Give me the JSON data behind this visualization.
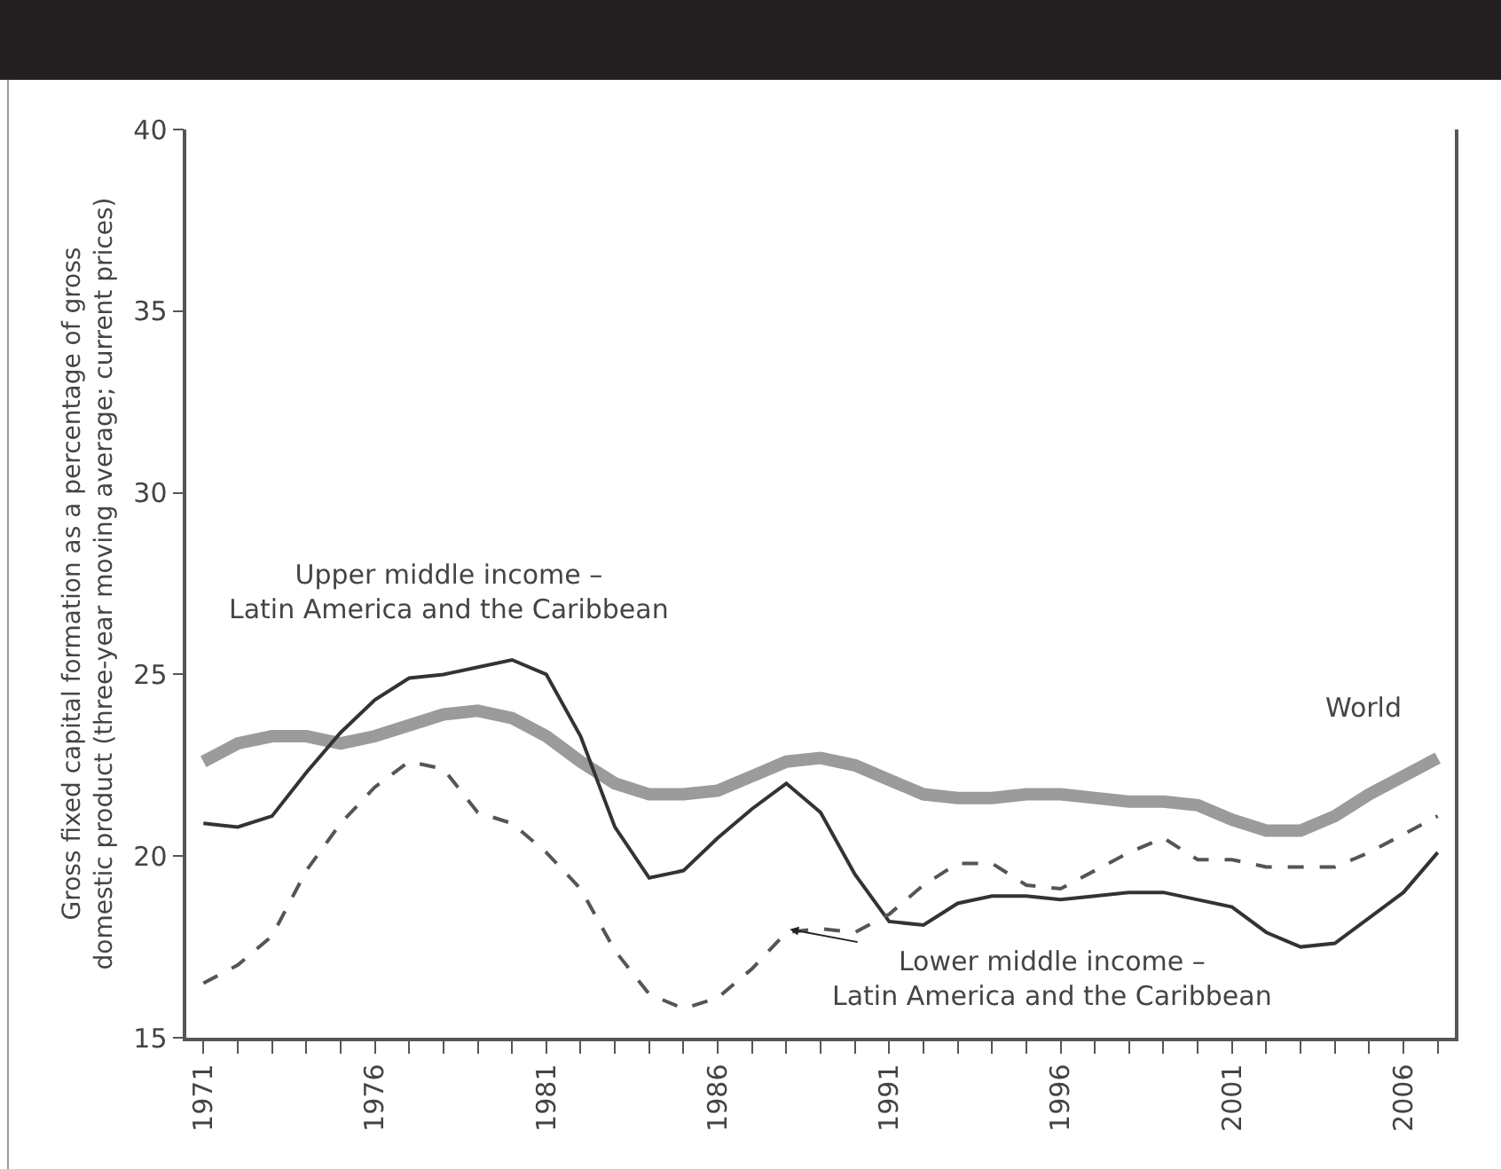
{
  "chart_data": {
    "type": "line",
    "ylabel": "Gross fixed capital formation as a percentage of gross domestic product (three-year moving average; current prices)",
    "x": [
      1971,
      1972,
      1973,
      1974,
      1975,
      1976,
      1977,
      1978,
      1979,
      1980,
      1981,
      1982,
      1983,
      1984,
      1985,
      1986,
      1987,
      1988,
      1989,
      1990,
      1991,
      1992,
      1993,
      1994,
      1995,
      1996,
      1997,
      1998,
      1999,
      2000,
      2001,
      2002,
      2003,
      2004,
      2005,
      2006,
      2007
    ],
    "series": [
      {
        "color": "#9b9b9b",
        "values": [
          22.6,
          23.1,
          23.3,
          23.3,
          23.1,
          23.3,
          23.6,
          23.9,
          24.0,
          23.8,
          23.3,
          22.6,
          22.0,
          21.7,
          21.7,
          21.8,
          22.2,
          22.6,
          22.7,
          22.5,
          22.1,
          21.7,
          21.6,
          21.6,
          21.7,
          21.7,
          21.6,
          21.5,
          21.5,
          21.4,
          21.0,
          20.7,
          20.7,
          21.1,
          21.7,
          22.2,
          22.7
        ]
      },
      {
        "color": "#333333",
        "line_style": "solid",
        "values": [
          20.9,
          20.8,
          21.1,
          22.3,
          23.4,
          24.3,
          24.9,
          25.0,
          25.2,
          25.4,
          25.0,
          23.3,
          20.8,
          19.4,
          19.6,
          20.5,
          21.3,
          22.0,
          21.2,
          19.5,
          18.2,
          18.1,
          18.7,
          18.9,
          18.9,
          18.8,
          18.9,
          19.0,
          19.0,
          18.8,
          18.6,
          17.9,
          17.5,
          17.6,
          18.3,
          19.0,
          20.1
        ]
      },
      {
        "color": "#555555",
        "line_style": "dashed",
        "values": [
          16.5,
          17.0,
          17.8,
          19.6,
          20.9,
          21.9,
          22.6,
          22.4,
          21.2,
          20.9,
          20.1,
          19.1,
          17.4,
          16.2,
          15.8,
          16.1,
          16.9,
          17.9,
          18.0,
          17.9,
          18.4,
          19.2,
          19.8,
          19.8,
          19.2,
          19.1,
          19.6,
          20.1,
          20.5,
          19.9,
          19.9,
          19.7,
          19.7,
          19.7,
          20.1,
          20.6,
          21.1
        ]
      }
    ],
    "annotations": [
      "Upper middle income –\nLatin America and the Caribbean",
      {
        "text": "World",
        "x": 2007,
        "y": 22.7
      },
      {
        "text": "Lower middle income –\nLatin America and the Caribbean",
        "x": 1988,
        "y": 18.0
      }
    ],
    "xlim": [
      1970.5,
      2007.5
    ],
    "xticks": [
      {
        "value": 1971,
        "label": "1971"
      },
      {
        "value": 1972,
        "label": null
      },
      {
        "value": 1973,
        "label": null
      },
      {
        "value": 1974,
        "label": null
      },
      {
        "value": 1975,
        "label": null
      },
      {
        "value": 1976,
        "label": "1976"
      },
      {
        "value": 1977,
        "label": null
      },
      {
        "value": 1978,
        "label": null
      },
      {
        "value": 1979,
        "label": null
      },
      {
        "value": 1980,
        "label": null
      },
      {
        "value": 1981,
        "label": "1981"
      },
      {
        "value": 1982,
        "label": null
      },
      {
        "value": 1983,
        "label": null
      },
      {
        "value": 1984,
        "label": null
      },
      {
        "value": 1985,
        "label": null
      },
      {
        "value": 1986,
        "label": "1986"
      },
      {
        "value": 1987,
        "label": null
      },
      {
        "value": 1988,
        "label": null
      },
      {
        "value": 1989,
        "label": null
      },
      {
        "value": 1990,
        "label": null
      },
      {
        "value": 1991,
        "label": "1991"
      },
      {
        "value": 1992,
        "label": null
      },
      {
        "value": 1993,
        "label": null
      },
      {
        "value": 1994,
        "label": null
      },
      {
        "value": 1995,
        "label": null
      },
      {
        "value": 1996,
        "label": "1996"
      },
      {
        "value": 1997,
        "label": null
      },
      {
        "value": 1998,
        "label": null
      },
      {
        "value": 1999,
        "label": null
      },
      {
        "value": 2000,
        "label": null
      },
      {
        "value": 2001,
        "label": "2001"
      },
      {
        "value": 2002,
        "label": null
      },
      {
        "value": 2003,
        "label": null
      },
      {
        "value": 2004,
        "label": null
      },
      {
        "value": 2005,
        "label": null
      },
      {
        "value": 2006,
        "label": "2006"
      },
      {
        "value": 2007,
        "label": null
      }
    ],
    "ylim": [
      15,
      40
    ],
    "yticks": [
      15,
      20,
      25,
      30,
      35,
      40
    ],
    "grid": false
  }
}
